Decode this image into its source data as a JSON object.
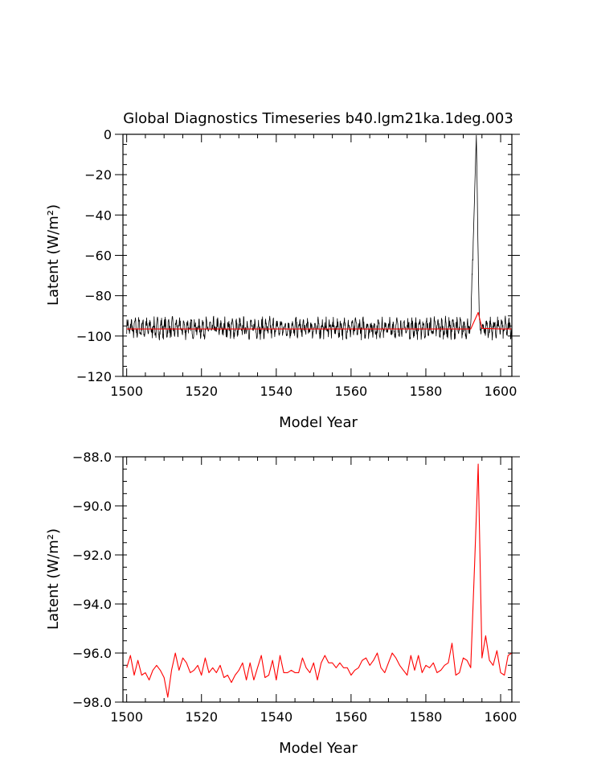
{
  "chart_data": [
    {
      "type": "line",
      "title": "Global Diagnostics Timeseries b40.lgm21ka.1deg.003",
      "xlabel": "Model Year",
      "ylabel": "Latent (W/m²)",
      "xlim": [
        1499,
        1603
      ],
      "ylim": [
        -120,
        0
      ],
      "xticks": [
        "1500",
        "1520",
        "1540",
        "1560",
        "1580",
        "1600"
      ],
      "yticks": [
        "0",
        "−20",
        "−40",
        "−60",
        "−80",
        "−100",
        "−120"
      ],
      "grid": false,
      "series": [
        {
          "color": "#000000",
          "style": "monthly",
          "note_values": "monthly global-mean latent heat flux oscillating roughly between -103 and -90; spike to 0 near year 1594",
          "x": [
            1500,
            1510,
            1520,
            1530,
            1540,
            1550,
            1560,
            1570,
            1580,
            1590,
            1592,
            1593.5,
            1594.3,
            1595,
            1600,
            1603
          ],
          "y": [
            -96,
            -96,
            -96,
            -96,
            -96,
            -96,
            -96,
            -96,
            -96,
            -96,
            -96,
            -0.5,
            -96,
            -96,
            -96,
            -96
          ],
          "amplitude": 5
        },
        {
          "color": "#ff0000",
          "style": "annual",
          "x": [
            1500,
            1510,
            1520,
            1530,
            1540,
            1550,
            1560,
            1570,
            1580,
            1590,
            1592,
            1594,
            1595,
            1600,
            1603
          ],
          "y": [
            -96.5,
            -96.5,
            -96.5,
            -96.5,
            -96.5,
            -96.5,
            -96.5,
            -96.5,
            -96.5,
            -96.5,
            -96.5,
            -88.3,
            -96.2,
            -96.5,
            -96.5
          ]
        }
      ]
    },
    {
      "type": "line",
      "xlabel": "Model Year",
      "ylabel": "Latent (W/m²)",
      "xlim": [
        1499,
        1603
      ],
      "ylim": [
        -98,
        -88
      ],
      "xticks": [
        "1500",
        "1520",
        "1540",
        "1560",
        "1580",
        "1600"
      ],
      "yticks": [
        "−88.0",
        "−90.0",
        "−92.0",
        "−94.0",
        "−96.0",
        "−98.0"
      ],
      "grid": false,
      "series": [
        {
          "color": "#ff0000",
          "x": [
            1500,
            1501,
            1502,
            1503,
            1504,
            1505,
            1506,
            1507,
            1508,
            1509,
            1510,
            1511,
            1512,
            1513,
            1514,
            1515,
            1516,
            1517,
            1518,
            1519,
            1520,
            1521,
            1522,
            1523,
            1524,
            1525,
            1526,
            1527,
            1528,
            1529,
            1530,
            1531,
            1532,
            1533,
            1534,
            1535,
            1536,
            1537,
            1538,
            1539,
            1540,
            1541,
            1542,
            1543,
            1544,
            1545,
            1546,
            1547,
            1548,
            1549,
            1550,
            1551,
            1552,
            1553,
            1554,
            1555,
            1556,
            1557,
            1558,
            1559,
            1560,
            1561,
            1562,
            1563,
            1564,
            1565,
            1566,
            1567,
            1568,
            1569,
            1570,
            1571,
            1572,
            1573,
            1574,
            1575,
            1576,
            1577,
            1578,
            1579,
            1580,
            1581,
            1582,
            1583,
            1584,
            1585,
            1586,
            1587,
            1588,
            1589,
            1590,
            1591,
            1592,
            1593,
            1594,
            1595,
            1596,
            1597,
            1598,
            1599,
            1600,
            1601,
            1602,
            1603
          ],
          "y": [
            -96.6,
            -96.1,
            -96.9,
            -96.3,
            -96.9,
            -96.8,
            -97.1,
            -96.7,
            -96.5,
            -96.7,
            -97.0,
            -97.8,
            -96.7,
            -96.0,
            -96.7,
            -96.2,
            -96.4,
            -96.8,
            -96.7,
            -96.5,
            -96.9,
            -96.2,
            -96.8,
            -96.6,
            -96.8,
            -96.5,
            -97.0,
            -96.9,
            -97.2,
            -96.9,
            -96.7,
            -96.4,
            -97.1,
            -96.4,
            -97.1,
            -96.6,
            -96.1,
            -97.0,
            -96.9,
            -96.3,
            -97.1,
            -96.1,
            -96.8,
            -96.8,
            -96.7,
            -96.8,
            -96.8,
            -96.2,
            -96.6,
            -96.8,
            -96.4,
            -97.1,
            -96.4,
            -96.1,
            -96.4,
            -96.4,
            -96.6,
            -96.4,
            -96.6,
            -96.6,
            -96.9,
            -96.7,
            -96.6,
            -96.3,
            -96.2,
            -96.5,
            -96.3,
            -96.0,
            -96.6,
            -96.8,
            -96.4,
            -96.0,
            -96.2,
            -96.5,
            -96.7,
            -96.9,
            -96.1,
            -96.7,
            -96.1,
            -96.8,
            -96.5,
            -96.6,
            -96.4,
            -96.8,
            -96.7,
            -96.5,
            -96.4,
            -95.6,
            -96.9,
            -96.8,
            -96.2,
            -96.3,
            -96.6,
            -92.5,
            -88.3,
            -96.2,
            -95.3,
            -96.3,
            -96.5,
            -95.9,
            -96.8,
            -96.9,
            -96.1,
            -96.0
          ]
        }
      ]
    }
  ]
}
